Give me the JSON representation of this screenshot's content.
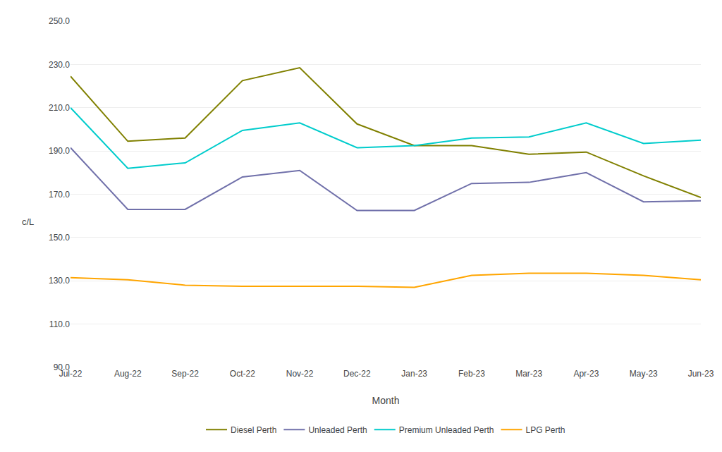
{
  "chart_data": {
    "type": "line",
    "xlabel": "Month",
    "annotations": [
      "c/L"
    ],
    "categories": [
      "Jul-22",
      "Aug-22",
      "Sep-22",
      "Oct-22",
      "Nov-22",
      "Dec-22",
      "Jan-23",
      "Feb-23",
      "Mar-23",
      "Apr-23",
      "May-23",
      "Jun-23"
    ],
    "series": [
      {
        "name": "Diesel Perth",
        "color": "#808000",
        "values": [
          224.5,
          194.5,
          196.0,
          222.5,
          228.5,
          202.5,
          192.5,
          192.5,
          188.5,
          189.5,
          178.5,
          168.5
        ]
      },
      {
        "name": "Unleaded Perth",
        "color": "#7070AA",
        "values": [
          191.5,
          163.0,
          163.0,
          178.0,
          181.0,
          162.5,
          162.5,
          175.0,
          175.5,
          180.0,
          166.5,
          167.0
        ]
      },
      {
        "name": "Premium Unleaded Perth",
        "color": "#00CCCC",
        "values": [
          210.0,
          182.0,
          184.5,
          199.5,
          203.0,
          191.5,
          192.5,
          196.0,
          196.5,
          203.0,
          193.5,
          195.0
        ]
      },
      {
        "name": "LPG Perth",
        "color": "#FFA500",
        "values": [
          131.5,
          130.5,
          128.0,
          127.5,
          127.5,
          127.5,
          127.0,
          132.5,
          133.5,
          133.5,
          132.5,
          130.5
        ]
      }
    ],
    "ylim": [
      90,
      250
    ],
    "yticks": [
      {
        "value": 90,
        "label": "90.0"
      },
      {
        "value": 110,
        "label": "110.0"
      },
      {
        "value": 130,
        "label": "130.0"
      },
      {
        "value": 150,
        "label": "150.0"
      },
      {
        "value": 170,
        "label": "170.0"
      },
      {
        "value": 190,
        "label": "190.0"
      },
      {
        "value": 210,
        "label": "210.0"
      },
      {
        "value": 230,
        "label": "230.0"
      },
      {
        "value": 250,
        "label": "250.0"
      }
    ],
    "grid": true,
    "legend": "bottom"
  }
}
